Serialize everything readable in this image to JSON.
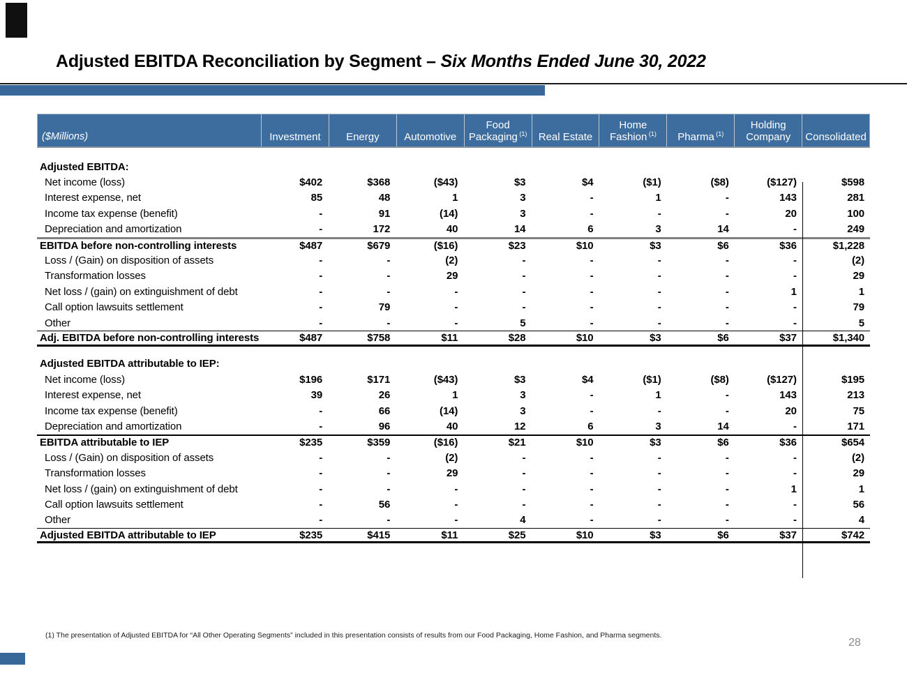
{
  "slide": {
    "title_main": "Adjusted EBITDA Reconciliation by Segment – ",
    "title_italic": "Six Months Ended June 30, 2022",
    "page_number": "28",
    "footnote": "(1) The presentation of Adjusted EBITDA for “All Other Operating Segments” included in this presentation consists of results from our Food Packaging, Home Fashion, and Pharma segments."
  },
  "colors": {
    "accent_blue": "#3D6D9E",
    "title_bar_blue": "#38689A",
    "hairline_black": "#1A1A1A",
    "total_rule_gray": "#7F7F7F"
  },
  "table": {
    "unit_label": "($Millions)",
    "columns": [
      {
        "lines": [
          "Investment"
        ],
        "sup": ""
      },
      {
        "lines": [
          "Energy"
        ],
        "sup": ""
      },
      {
        "lines": [
          "Automotive"
        ],
        "sup": ""
      },
      {
        "lines": [
          "Food",
          "Packaging"
        ],
        "sup": "(1)"
      },
      {
        "lines": [
          "Real Estate"
        ],
        "sup": ""
      },
      {
        "lines": [
          "Home",
          "Fashion"
        ],
        "sup": "(1)"
      },
      {
        "lines": [
          "Pharma"
        ],
        "sup": "(1)"
      },
      {
        "lines": [
          "Holding",
          "Company"
        ],
        "sup": ""
      },
      {
        "lines": [
          "Consolidated"
        ],
        "sup": ""
      }
    ],
    "sections": [
      {
        "header": "Adjusted EBITDA:",
        "rows": [
          {
            "label": "Net income (loss)",
            "values": [
              "$402",
              "$368",
              "($43)",
              "$3",
              "$4",
              "($1)",
              "($8)",
              "($127)",
              "$598"
            ],
            "style": "item"
          },
          {
            "label": "Interest expense, net",
            "values": [
              "85",
              "48",
              "1",
              "3",
              "-",
              "1",
              "-",
              "143",
              "281"
            ],
            "style": "item"
          },
          {
            "label": "Income tax expense (benefit)",
            "values": [
              "-",
              "91",
              "(14)",
              "3",
              "-",
              "-",
              "-",
              "20",
              "100"
            ],
            "style": "item"
          },
          {
            "label": "Depreciation and amortization",
            "values": [
              "-",
              "172",
              "40",
              "14",
              "6",
              "3",
              "14",
              "-",
              "249"
            ],
            "style": "item"
          },
          {
            "label": "EBITDA before non-controlling interests",
            "values": [
              "$487",
              "$679",
              "($16)",
              "$23",
              "$10",
              "$3",
              "$6",
              "$36",
              "$1,228"
            ],
            "style": "total total-gray"
          },
          {
            "label": "Loss / (Gain) on disposition of assets",
            "values": [
              "-",
              "-",
              "(2)",
              "-",
              "-",
              "-",
              "-",
              "-",
              "(2)"
            ],
            "style": "item"
          },
          {
            "label": "Transformation losses",
            "values": [
              "-",
              "-",
              "29",
              "-",
              "-",
              "-",
              "-",
              "-",
              "29"
            ],
            "style": "item"
          },
          {
            "label": "Net loss / (gain) on extinguishment of debt",
            "values": [
              "-",
              "-",
              "-",
              "-",
              "-",
              "-",
              "-",
              "1",
              "1"
            ],
            "style": "item"
          },
          {
            "label": "Call option lawsuits settlement",
            "values": [
              "-",
              "79",
              "-",
              "-",
              "-",
              "-",
              "-",
              "-",
              "79"
            ],
            "style": "item"
          },
          {
            "label": "Other",
            "values": [
              "-",
              "-",
              "-",
              "5",
              "-",
              "-",
              "-",
              "-",
              "5"
            ],
            "style": "item"
          },
          {
            "label": "Adj. EBITDA before non-controlling interests",
            "values": [
              "$487",
              "$758",
              "$11",
              "$28",
              "$10",
              "$3",
              "$6",
              "$37",
              "$1,340"
            ],
            "style": "total total-final"
          }
        ]
      },
      {
        "header": "Adjusted EBITDA attributable to IEP:",
        "rows": [
          {
            "label": "Net income (loss)",
            "values": [
              "$196",
              "$171",
              "($43)",
              "$3",
              "$4",
              "($1)",
              "($8)",
              "($127)",
              "$195"
            ],
            "style": "item"
          },
          {
            "label": "Interest expense, net",
            "values": [
              "39",
              "26",
              "1",
              "3",
              "-",
              "1",
              "-",
              "143",
              "213"
            ],
            "style": "item"
          },
          {
            "label": "Income tax expense (benefit)",
            "values": [
              "-",
              "66",
              "(14)",
              "3",
              "-",
              "-",
              "-",
              "20",
              "75"
            ],
            "style": "item"
          },
          {
            "label": "Depreciation and amortization",
            "values": [
              "-",
              "96",
              "40",
              "12",
              "6",
              "3",
              "14",
              "-",
              "171"
            ],
            "style": "item"
          },
          {
            "label": "EBITDA attributable to IEP",
            "values": [
              "$235",
              "$359",
              "($16)",
              "$21",
              "$10",
              "$3",
              "$6",
              "$36",
              "$654"
            ],
            "style": "total total-black"
          },
          {
            "label": "Loss / (Gain) on disposition of assets",
            "values": [
              "-",
              "-",
              "(2)",
              "-",
              "-",
              "-",
              "-",
              "-",
              "(2)"
            ],
            "style": "item"
          },
          {
            "label": "Transformation losses",
            "values": [
              "-",
              "-",
              "29",
              "-",
              "-",
              "-",
              "-",
              "-",
              "29"
            ],
            "style": "item"
          },
          {
            "label": "Net loss / (gain) on extinguishment of debt",
            "values": [
              "-",
              "-",
              "-",
              "-",
              "-",
              "-",
              "-",
              "1",
              "1"
            ],
            "style": "item"
          },
          {
            "label": "Call option lawsuits settlement",
            "values": [
              "-",
              "56",
              "-",
              "-",
              "-",
              "-",
              "-",
              "-",
              "56"
            ],
            "style": "item"
          },
          {
            "label": "Other",
            "values": [
              "-",
              "-",
              "-",
              "4",
              "-",
              "-",
              "-",
              "-",
              "4"
            ],
            "style": "item"
          },
          {
            "label": "Adjusted EBITDA attributable to IEP",
            "values": [
              "$235",
              "$415",
              "$11",
              "$25",
              "$10",
              "$3",
              "$6",
              "$37",
              "$742"
            ],
            "style": "total total-final"
          }
        ]
      }
    ]
  }
}
